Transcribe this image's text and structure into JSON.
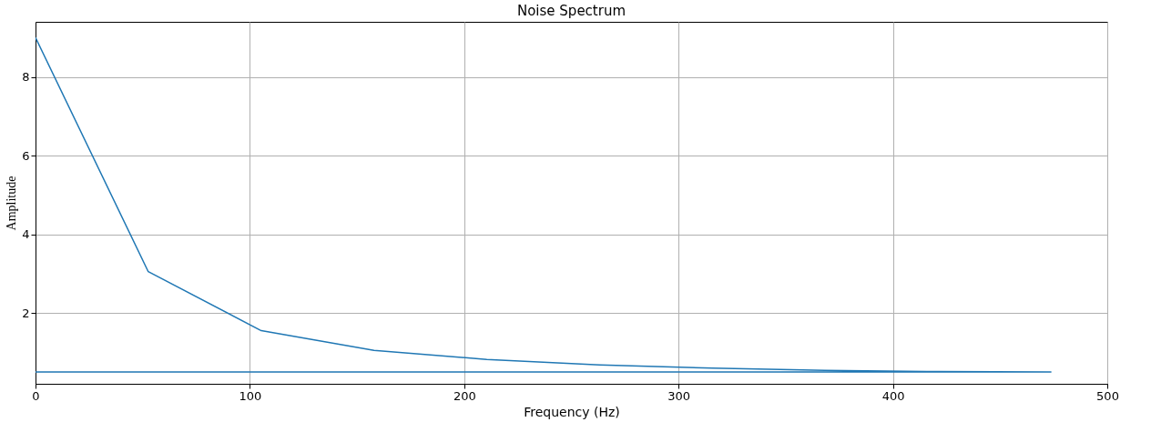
{
  "chart_data": {
    "type": "line",
    "title": "Noise Spectrum",
    "xlabel": "Frequency (Hz)",
    "ylabel": "Amplitude",
    "x": [
      0,
      52.6,
      105.3,
      157.9,
      210.5,
      263.2,
      315.8,
      368.4,
      421.1,
      473.7,
      0
    ],
    "series": [
      {
        "color": "#1f77b4",
        "values": [
          9.0,
          3.05,
          1.55,
          1.05,
          0.82,
          0.68,
          0.6,
          0.54,
          0.51,
          0.5,
          0.5
        ]
      }
    ],
    "xlim": [
      0,
      500
    ],
    "xticks": [
      0,
      100,
      200,
      300,
      400,
      500
    ],
    "ylim": [
      0.2,
      9.4
    ],
    "yticks": [
      2,
      4,
      6,
      8
    ],
    "grid": true,
    "marker": "none",
    "line_style": "solid",
    "legend": false
  }
}
